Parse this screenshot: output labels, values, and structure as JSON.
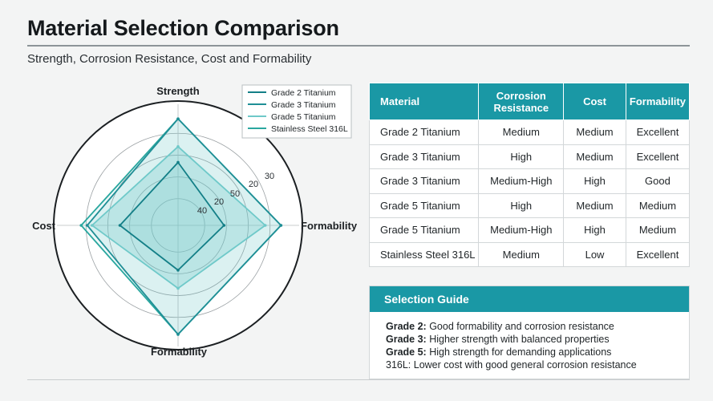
{
  "header": {
    "title": "Material Selection Comparison",
    "subtitle": "Strength, Corrosion Resistance, Cost and Formability"
  },
  "colors": {
    "accent": "#1a98a5",
    "series": [
      "#137f87",
      "#1f8f96",
      "#6fc9c9",
      "#2aa79f"
    ]
  },
  "chart_data": {
    "type": "radar",
    "axes": [
      "Strength",
      "Formability",
      "Formability",
      "Cost"
    ],
    "tick_labels": [
      "40",
      "20",
      "50",
      "20",
      "30"
    ],
    "legend_position": "top-right",
    "series": [
      {
        "name": "Grade 2 Titanium",
        "values": [
          52,
          38,
          37,
          48
        ]
      },
      {
        "name": "Grade 3 Titanium",
        "values": [
          88,
          85,
          90,
          75
        ]
      },
      {
        "name": "Grade 5 Titanium",
        "values": [
          65,
          72,
          52,
          71
        ]
      },
      {
        "name": "Stainless Steel 316L",
        "values": [
          88,
          85,
          90,
          80
        ]
      }
    ]
  },
  "table": {
    "headers": [
      "Material",
      "Corrosion Resistance",
      "Cost",
      "Formability"
    ],
    "rows": [
      [
        "Grade 2 Titanium",
        "Medium",
        "Medium",
        "Excellent"
      ],
      [
        "Grade 3 Titanium",
        "High",
        "Medium",
        "Excellent"
      ],
      [
        "Grade 3 Titanium",
        "Medium-High",
        "High",
        "Good"
      ],
      [
        "Grade 5 Titanium",
        "High",
        "Medium",
        "Medium"
      ],
      [
        "Grade 5 Titanium",
        "Medium-High",
        "High",
        "Medium"
      ],
      [
        "Stainless Steel 316L",
        "Medium",
        "Low",
        "Excellent"
      ]
    ]
  },
  "guide": {
    "title": "Selection Guide",
    "items": [
      {
        "label": "Grade 2:",
        "text": " Good formability and corrosion resistance"
      },
      {
        "label": "Grade 3:",
        "text": " Higher strength with balanced properties"
      },
      {
        "label": "Grade 5:",
        "text": " High strength for demanding applications"
      },
      {
        "label": "",
        "text": "316L: Lower cost with good general corrosion resistance"
      }
    ]
  }
}
